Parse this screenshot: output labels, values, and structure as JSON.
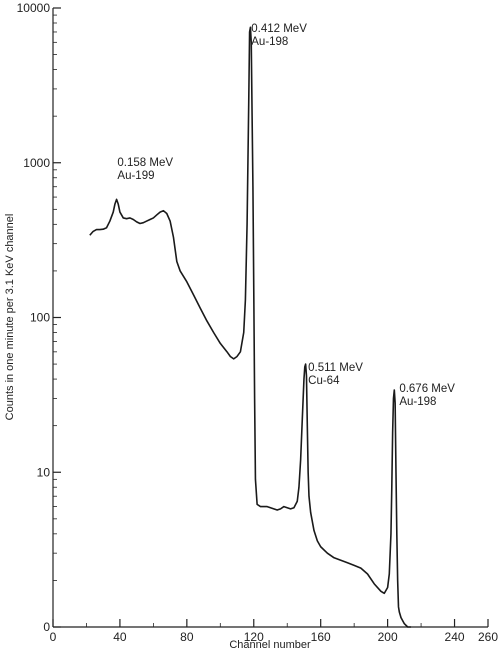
{
  "chart_data": {
    "type": "line",
    "title": "",
    "xlabel": "Channel number",
    "ylabel": "Counts in one minute per 3.1 KeV channel",
    "xlim": [
      0,
      260
    ],
    "ylim": [
      1,
      10000
    ],
    "yscale": "log",
    "grid": false,
    "x_ticks": [
      0,
      40,
      80,
      120,
      160,
      200,
      240,
      260
    ],
    "x_tick_labels": [
      "0",
      "40",
      "80",
      "120",
      "160",
      "200",
      "240",
      "260"
    ],
    "y_ticks": [
      1,
      10,
      100,
      1000,
      10000
    ],
    "y_tick_labels": [
      "0",
      "10",
      "100",
      "1000",
      "10000"
    ],
    "line_color": "#1a1a1a",
    "series": [
      {
        "x": [
          22,
          24,
          26,
          28,
          30,
          32,
          34,
          36,
          37,
          38,
          39,
          40,
          42,
          44,
          46,
          48,
          50,
          52,
          54,
          56,
          58,
          60,
          62,
          64,
          66,
          68,
          70,
          72,
          74,
          76,
          80,
          84,
          88,
          92,
          96,
          100,
          104,
          106,
          108,
          110,
          112,
          114,
          115,
          116,
          117,
          117.5,
          118,
          118.5,
          119,
          119.5,
          120,
          120.5,
          121,
          122,
          124,
          126,
          128,
          130,
          132,
          134,
          136,
          138,
          140,
          142,
          144,
          146,
          147,
          148,
          149,
          150,
          150.5,
          151,
          151.5,
          152,
          152.5,
          153,
          154,
          156,
          158,
          160,
          164,
          168,
          172,
          176,
          180,
          184,
          188,
          192,
          196,
          198,
          200,
          201,
          202,
          202.5,
          203,
          203.5,
          204,
          204.5,
          205,
          205.5,
          206,
          206.5,
          207,
          208,
          210,
          212,
          214
        ],
        "y": [
          340,
          360,
          370,
          370,
          372,
          380,
          420,
          480,
          540,
          580,
          540,
          480,
          440,
          435,
          440,
          430,
          415,
          405,
          410,
          420,
          430,
          440,
          460,
          480,
          490,
          470,
          420,
          330,
          230,
          200,
          170,
          140,
          115,
          95,
          80,
          68,
          60,
          56,
          54,
          56,
          60,
          80,
          130,
          400,
          2500,
          7000,
          7500,
          6000,
          2000,
          700,
          150,
          30,
          9,
          6.2,
          6.0,
          6.0,
          6.0,
          5.9,
          5.8,
          5.7,
          5.8,
          6.0,
          5.9,
          5.8,
          5.9,
          6.5,
          8,
          12,
          22,
          40,
          48,
          50,
          42,
          20,
          10,
          7,
          5.5,
          4.2,
          3.6,
          3.3,
          3.0,
          2.8,
          2.7,
          2.6,
          2.5,
          2.4,
          2.2,
          1.9,
          1.7,
          1.65,
          1.8,
          2.2,
          4,
          8,
          18,
          30,
          34,
          28,
          10,
          4,
          2,
          1.35,
          1.25,
          1.15,
          1.05,
          0.95,
          0.9
        ]
      }
    ],
    "annotations": [
      {
        "line1": "0.412 MeV",
        "line2": "Au-198",
        "x": 118.5,
        "y": 7000
      },
      {
        "line1": "0.158 MeV",
        "line2": "Au-199",
        "x": 38.5,
        "y": 950
      },
      {
        "line1": "0.511 MeV",
        "line2": "Cu-64",
        "x": 152.5,
        "y": 45
      },
      {
        "line1": "0.676 MeV",
        "line2": "Au-198",
        "x": 207,
        "y": 33
      }
    ]
  }
}
